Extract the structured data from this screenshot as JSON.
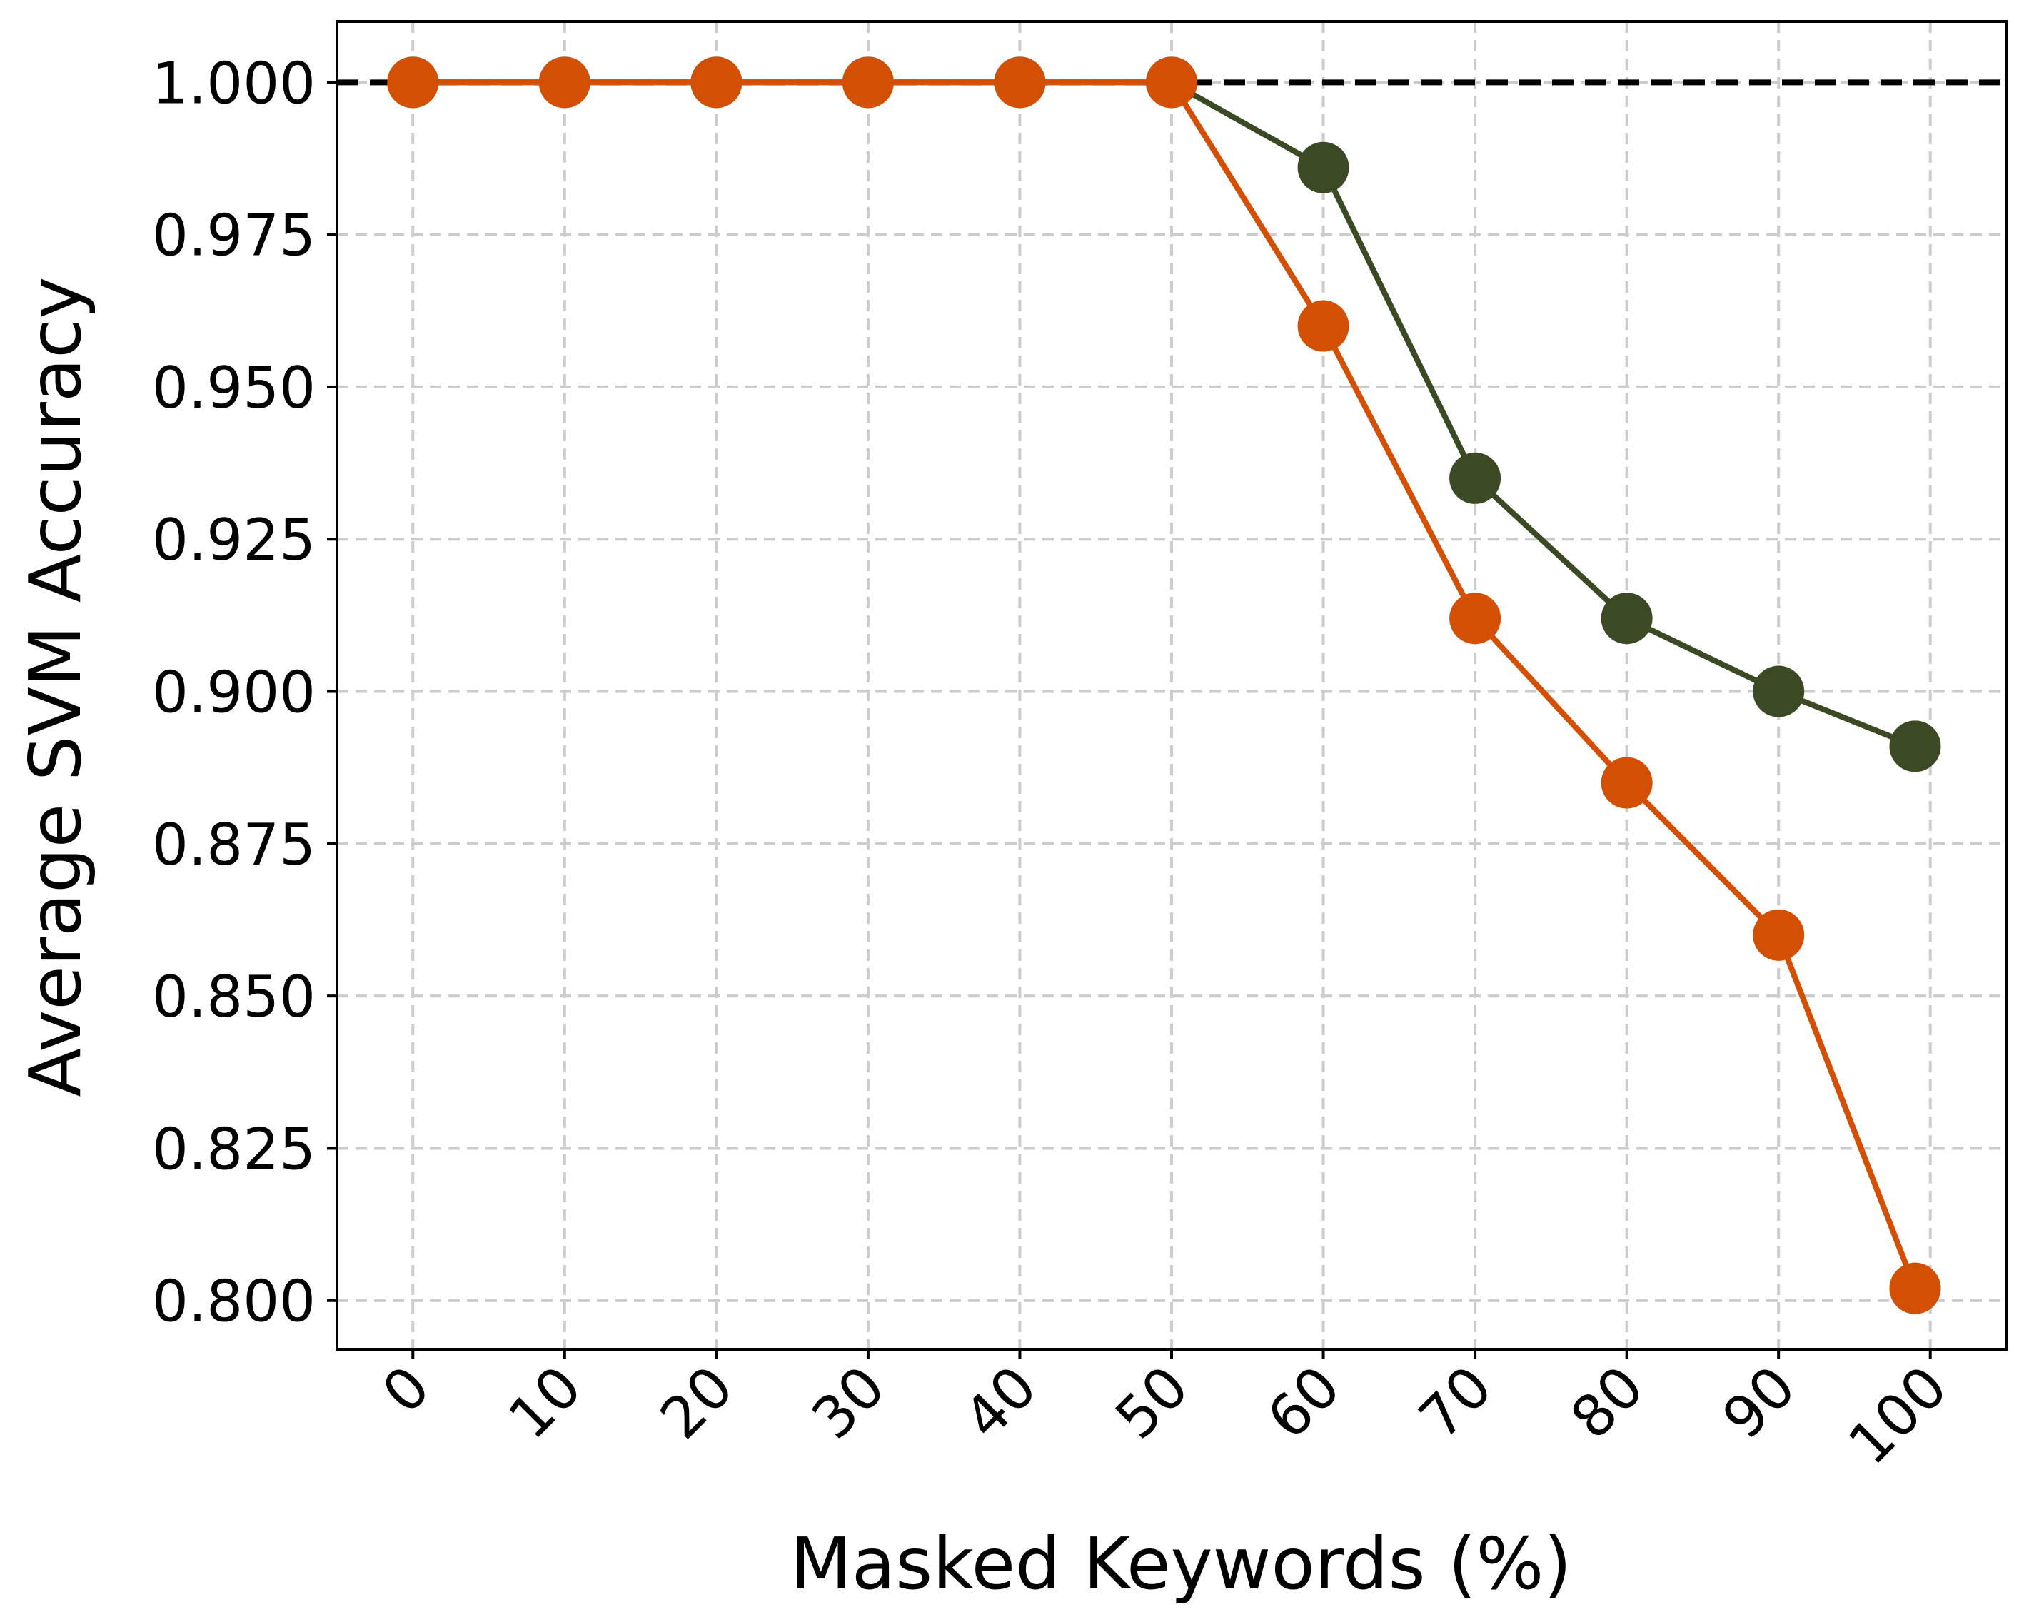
{
  "chart_data": {
    "type": "line",
    "title": "",
    "xlabel": "Masked Keywords (%)",
    "ylabel": "Average SVM Accuracy",
    "x_ticks": [
      "0",
      "10",
      "20",
      "30",
      "40",
      "50",
      "60",
      "70",
      "80",
      "90",
      "100"
    ],
    "y_ticks": [
      "1.000",
      "0.975",
      "0.950",
      "0.925",
      "0.900",
      "0.875",
      "0.850",
      "0.825",
      "0.800"
    ],
    "xlim": [
      -5,
      105
    ],
    "ylim": [
      0.792,
      1.01
    ],
    "grid": true,
    "legend": false,
    "reference_line": {
      "y": 1.0,
      "style": "dashed",
      "color": "#000000"
    },
    "series": [
      {
        "color": "#3b4a24",
        "x": [
          0,
          10,
          20,
          30,
          40,
          50,
          60,
          70,
          80,
          90,
          99
        ],
        "y": [
          1.0,
          1.0,
          1.0,
          1.0,
          1.0,
          1.0,
          0.986,
          0.935,
          0.912,
          0.9,
          0.891
        ]
      },
      {
        "color": "#d24f03",
        "x": [
          0,
          10,
          20,
          30,
          40,
          50,
          60,
          70,
          80,
          90,
          99
        ],
        "y": [
          1.0,
          1.0,
          1.0,
          1.0,
          1.0,
          1.0,
          0.96,
          0.912,
          0.885,
          0.86,
          0.802
        ]
      }
    ]
  }
}
